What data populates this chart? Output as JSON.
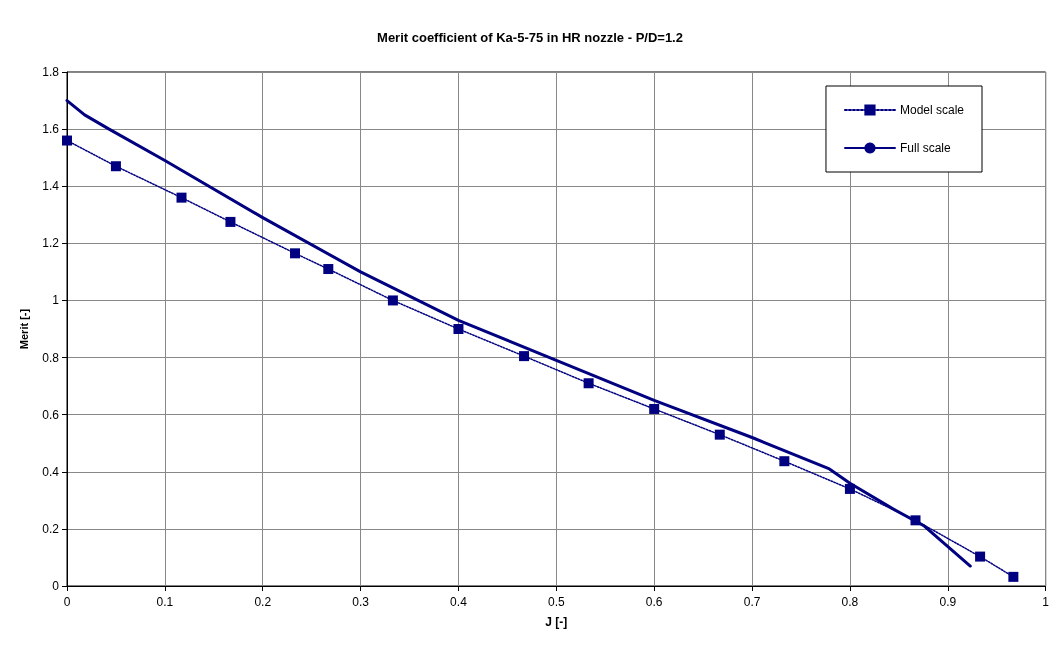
{
  "chart_data": {
    "type": "line",
    "title": "Merit coefficient of Ka-5-75 in HR nozzle - P/D=1.2",
    "xlabel": "J [-]",
    "ylabel": "Merit [-]",
    "xlim": [
      0,
      1
    ],
    "xticks": [
      0,
      0.1,
      0.2,
      0.3,
      0.4,
      0.5,
      0.6,
      0.7,
      0.8,
      0.9,
      1
    ],
    "ylim": [
      0,
      1.8
    ],
    "yticks": [
      0,
      0.2,
      0.4,
      0.6,
      0.8,
      1,
      1.2,
      1.4,
      1.6,
      1.8
    ],
    "grid": true,
    "legend": "top right",
    "series": [
      {
        "name": "Model scale",
        "color": "#000080",
        "marker": "square",
        "line_style": "dotted",
        "x": [
          0,
          0.05,
          0.117,
          0.167,
          0.233,
          0.267,
          0.333,
          0.4,
          0.467,
          0.533,
          0.6,
          0.667,
          0.733,
          0.8,
          0.867,
          0.933,
          0.967
        ],
        "values": [
          1.56,
          1.47,
          1.36,
          1.275,
          1.165,
          1.11,
          1.0,
          0.9,
          0.805,
          0.71,
          0.62,
          0.53,
          0.437,
          0.34,
          0.23,
          0.103,
          0.032
        ]
      },
      {
        "name": "Full scale",
        "color": "#000080",
        "marker": "none",
        "line_style": "solid",
        "x": [
          0,
          0.018,
          0.043,
          0.1,
          0.2,
          0.3,
          0.4,
          0.5,
          0.6,
          0.7,
          0.779,
          0.8,
          0.844,
          0.876,
          0.923
        ],
        "values": [
          1.7,
          1.65,
          1.6,
          1.49,
          1.29,
          1.1,
          0.93,
          0.79,
          0.65,
          0.52,
          0.41,
          0.36,
          0.27,
          0.21,
          0.07
        ]
      }
    ]
  }
}
